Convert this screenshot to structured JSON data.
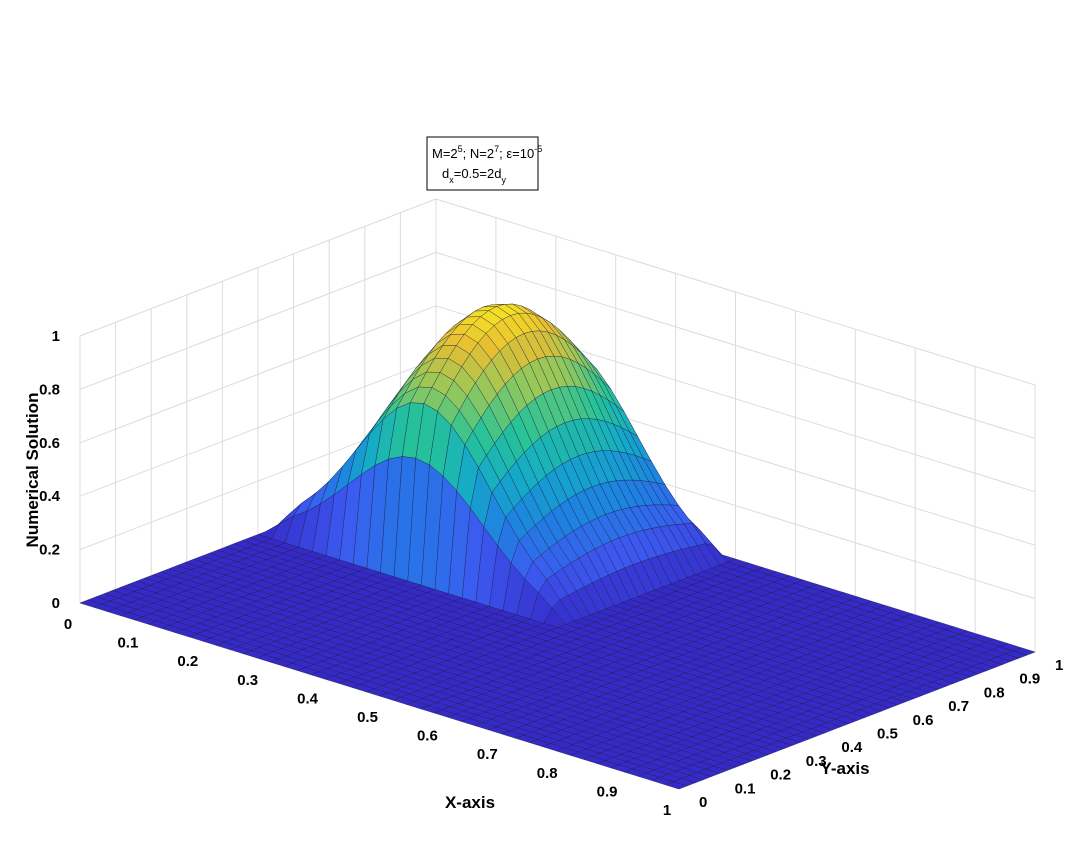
{
  "chart_data": {
    "type": "surface3d",
    "xlabel": "X-axis",
    "ylabel": "Y-axis",
    "zlabel": "Numerical Solution",
    "xlim": [
      0,
      1
    ],
    "ylim": [
      0,
      1
    ],
    "zlim": [
      0,
      1
    ],
    "x_ticks": [
      "0",
      "0.1",
      "0.2",
      "0.3",
      "0.4",
      "0.5",
      "0.6",
      "0.7",
      "0.8",
      "0.9",
      "1"
    ],
    "y_ticks": [
      "0",
      "0.1",
      "0.2",
      "0.3",
      "0.4",
      "0.5",
      "0.6",
      "0.7",
      "0.8",
      "0.9",
      "1"
    ],
    "z_ticks": [
      "0",
      "0.2",
      "0.4",
      "0.6",
      "0.8",
      "1"
    ],
    "grid": true,
    "colormap": "parula",
    "annotation": {
      "M_base": "M=2",
      "M_exp": "5",
      "N_base": "; N=2",
      "N_exp": "7",
      "eps_sym": "; ε=10",
      "eps_exp": "-5",
      "d_x": "d",
      "d_x_sub": "x",
      "d_mid": "=0.5=2d",
      "d_y_sub": "y"
    },
    "surface_samples": {
      "description_free": true,
      "x": [
        0.0,
        0.1,
        0.2,
        0.3,
        0.4,
        0.5,
        0.6,
        0.7,
        0.8,
        0.9,
        1.0
      ],
      "y": [
        0.0,
        0.1,
        0.2,
        0.3,
        0.4,
        0.5,
        0.6,
        0.7,
        0.8,
        0.9,
        1.0
      ],
      "peak_value": 0.9
    }
  }
}
